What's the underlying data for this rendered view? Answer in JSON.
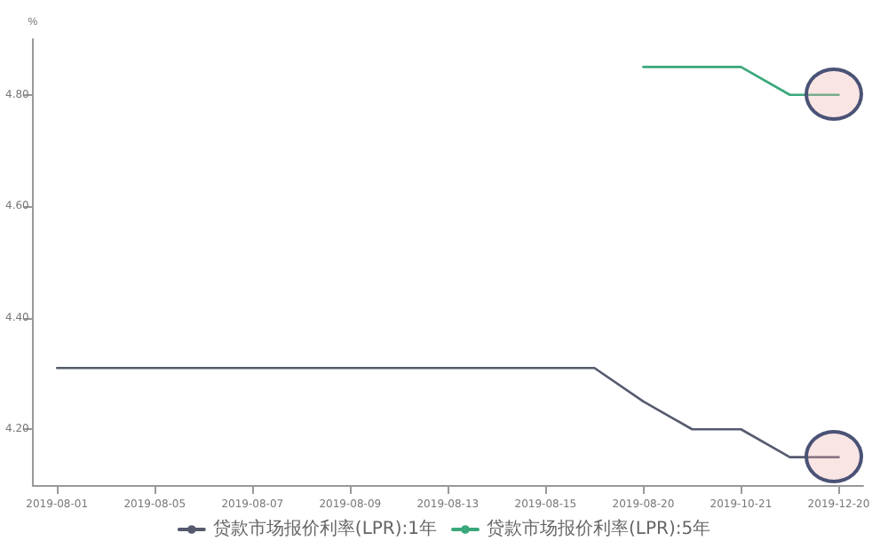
{
  "chart_data": {
    "type": "line",
    "ylabel": "%",
    "categories": [
      "2019-08-01",
      null,
      "2019-08-05",
      null,
      "2019-08-07",
      null,
      "2019-08-09",
      null,
      "2019-08-13",
      null,
      "2019-08-15",
      null,
      "2019-08-20",
      null,
      "2019-10-21",
      null,
      "2019-12-20"
    ],
    "series": [
      {
        "name": "贷款市场报价利率(LPR):1年",
        "color": "#555a6e",
        "values": [
          4.31,
          4.31,
          4.31,
          4.31,
          4.31,
          4.31,
          4.31,
          4.31,
          4.31,
          4.31,
          4.31,
          4.31,
          4.25,
          4.2,
          4.2,
          4.15,
          4.15
        ]
      },
      {
        "name": "贷款市场报价利率(LPR):5年",
        "color": "#3aa87a",
        "values": [
          null,
          null,
          null,
          null,
          null,
          null,
          null,
          null,
          null,
          null,
          null,
          null,
          4.85,
          4.85,
          4.85,
          4.8,
          4.8
        ]
      }
    ],
    "ylim": [
      4.1,
      4.9
    ],
    "yticks": [
      {
        "value": 4.2,
        "label": "4.20"
      },
      {
        "value": 4.4,
        "label": "4.40"
      },
      {
        "value": 4.6,
        "label": "4.60"
      },
      {
        "value": 4.8,
        "label": "4.80"
      }
    ],
    "grid": false,
    "legend": "bottom",
    "marker": "none",
    "line_style": "solid"
  }
}
